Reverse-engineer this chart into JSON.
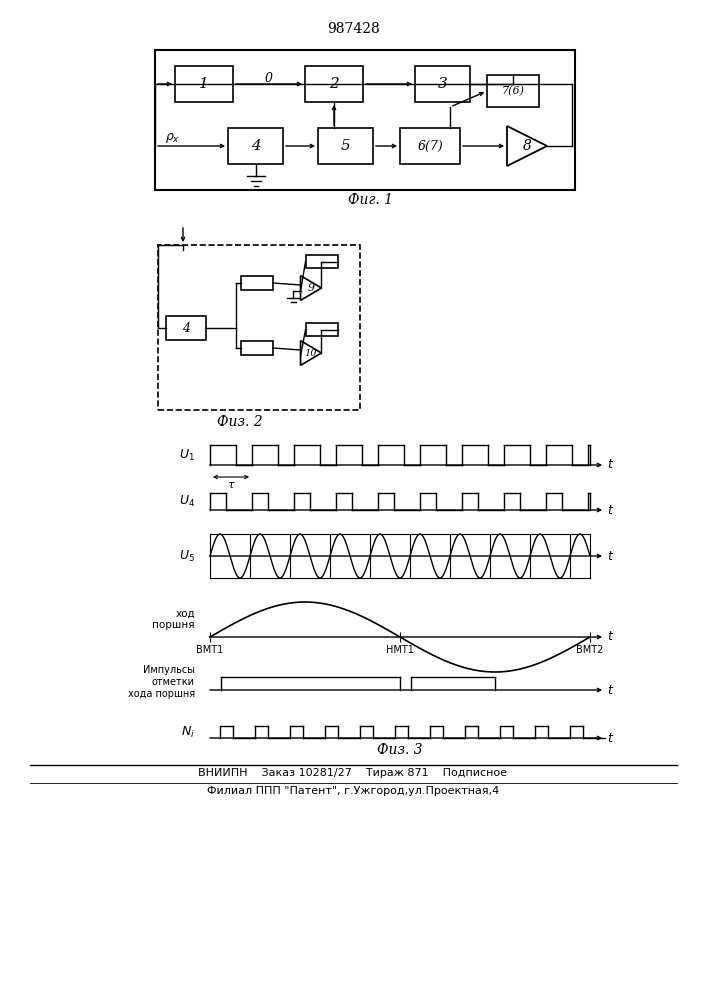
{
  "title": "987428",
  "fig1_label": "Фиг. 1",
  "fig2_label": "Физ. 2",
  "fig3_label": "Физ. 3",
  "footer_line1": "ВНИИПН    Заказ 10281/27    Тираж 871    Подписное",
  "footer_line2": "Филиал ППП \"Патент\", г.Ужгород,ул.Проектная,4",
  "bg_color": "#ffffff"
}
